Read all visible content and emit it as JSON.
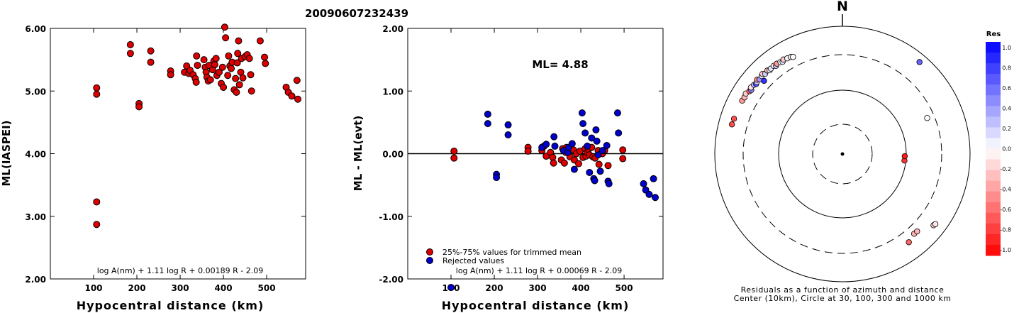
{
  "figure_title": "20090607232439",
  "chart_data": [
    {
      "type": "scatter",
      "ylabel": "ML(IASPEI)",
      "xlabel": "Hypocentral distance (km)",
      "xlim": [
        0,
        590
      ],
      "ylim": [
        2.0,
        6.0
      ],
      "x_ticks": [
        "100",
        "200",
        "300",
        "400",
        "500"
      ],
      "y_ticks": [
        "2.00",
        "3.00",
        "4.00",
        "5.00",
        "6.00"
      ],
      "formula": "log A(nm) + 1.11 log R + 0.00189 R - 2.09",
      "marker_color": "#dd0000",
      "points": [
        [
          107,
          5.05
        ],
        [
          107,
          4.95
        ],
        [
          107,
          3.23
        ],
        [
          107,
          2.87
        ],
        [
          185,
          5.74
        ],
        [
          185,
          5.6
        ],
        [
          205,
          4.8
        ],
        [
          205,
          4.75
        ],
        [
          232,
          5.64
        ],
        [
          232,
          5.46
        ],
        [
          278,
          5.32
        ],
        [
          278,
          5.26
        ],
        [
          310,
          5.3
        ],
        [
          315,
          5.4
        ],
        [
          320,
          5.28
        ],
        [
          323,
          5.33
        ],
        [
          330,
          5.26
        ],
        [
          335,
          5.2
        ],
        [
          337,
          5.14
        ],
        [
          338,
          5.56
        ],
        [
          340,
          5.41
        ],
        [
          355,
          5.5
        ],
        [
          358,
          5.38
        ],
        [
          360,
          5.3
        ],
        [
          362,
          5.22
        ],
        [
          365,
          5.16
        ],
        [
          367,
          5.41
        ],
        [
          370,
          5.18
        ],
        [
          375,
          5.34
        ],
        [
          378,
          5.48
        ],
        [
          380,
          5.42
        ],
        [
          383,
          5.52
        ],
        [
          385,
          5.25
        ],
        [
          390,
          5.3
        ],
        [
          395,
          5.12
        ],
        [
          398,
          5.38
        ],
        [
          400,
          5.06
        ],
        [
          403,
          6.02
        ],
        [
          405,
          5.85
        ],
        [
          410,
          5.25
        ],
        [
          412,
          5.56
        ],
        [
          415,
          5.4
        ],
        [
          418,
          5.36
        ],
        [
          420,
          5.46
        ],
        [
          425,
          5.02
        ],
        [
          428,
          5.2
        ],
        [
          430,
          4.98
        ],
        [
          432,
          5.45
        ],
        [
          433,
          5.6
        ],
        [
          435,
          5.8
        ],
        [
          437,
          5.1
        ],
        [
          440,
          5.3
        ],
        [
          442,
          5.52
        ],
        [
          445,
          5.21
        ],
        [
          450,
          5.55
        ],
        [
          455,
          5.58
        ],
        [
          460,
          5.52
        ],
        [
          463,
          5.26
        ],
        [
          465,
          5.0
        ],
        [
          485,
          5.8
        ],
        [
          495,
          5.54
        ],
        [
          497,
          5.44
        ],
        [
          545,
          5.06
        ],
        [
          550,
          4.98
        ],
        [
          558,
          4.92
        ],
        [
          570,
          5.17
        ],
        [
          572,
          4.87
        ]
      ]
    },
    {
      "type": "scatter",
      "ylabel": "ML - ML(evt)",
      "xlabel": "Hypocentral distance (km)",
      "xlim": [
        0,
        590
      ],
      "ylim": [
        -2.0,
        2.0
      ],
      "x_ticks": [
        "100",
        "200",
        "300",
        "400",
        "500"
      ],
      "y_ticks": [
        "-2.00",
        "-1.00",
        "0.00",
        "1.00",
        "2.00"
      ],
      "annotation": "ML= 4.88",
      "formula": "log A(nm) + 1.11 log R + 0.00069 R - 2.09",
      "reference_line": 0.0,
      "series": [
        {
          "name": "25%-75% values for trimmed mean",
          "color": "#dd0000",
          "points": [
            [
              107,
              0.04
            ],
            [
              107,
              -0.07
            ],
            [
              278,
              0.1
            ],
            [
              278,
              0.04
            ],
            [
              310,
              0.05
            ],
            [
              315,
              0.12
            ],
            [
              320,
              -0.04
            ],
            [
              330,
              0.02
            ],
            [
              335,
              -0.06
            ],
            [
              337,
              -0.15
            ],
            [
              355,
              -0.1
            ],
            [
              358,
              0.08
            ],
            [
              362,
              -0.15
            ],
            [
              365,
              0.02
            ],
            [
              367,
              0.1
            ],
            [
              375,
              -0.05
            ],
            [
              378,
              0.08
            ],
            [
              383,
              0.06
            ],
            [
              385,
              -0.1
            ],
            [
              390,
              0.0
            ],
            [
              395,
              -0.16
            ],
            [
              398,
              0.04
            ],
            [
              405,
              -0.06
            ],
            [
              410,
              0.08
            ],
            [
              412,
              -0.04
            ],
            [
              415,
              0.02
            ],
            [
              418,
              0.07
            ],
            [
              420,
              -0.02
            ],
            [
              425,
              0.1
            ],
            [
              428,
              -0.05
            ],
            [
              433,
              -0.07
            ],
            [
              440,
              0.05
            ],
            [
              442,
              -0.17
            ],
            [
              450,
              0.0
            ],
            [
              455,
              0.05
            ],
            [
              463,
              -0.19
            ],
            [
              497,
              -0.08
            ],
            [
              497,
              0.06
            ]
          ]
        },
        {
          "name": "Rejected values",
          "color": "#0000cc",
          "points": [
            [
              100,
              -2.2
            ],
            [
              185,
              0.63
            ],
            [
              185,
              0.48
            ],
            [
              205,
              -0.33
            ],
            [
              205,
              -0.38
            ],
            [
              232,
              0.46
            ],
            [
              232,
              0.3
            ],
            [
              310,
              0.1
            ],
            [
              320,
              0.15
            ],
            [
              338,
              0.27
            ],
            [
              340,
              0.12
            ],
            [
              360,
              0.05
            ],
            [
              370,
              0.02
            ],
            [
              372,
              0.1
            ],
            [
              380,
              0.16
            ],
            [
              385,
              -0.25
            ],
            [
              403,
              0.65
            ],
            [
              405,
              0.48
            ],
            [
              410,
              0.33
            ],
            [
              415,
              0.12
            ],
            [
              420,
              -0.3
            ],
            [
              425,
              0.25
            ],
            [
              430,
              -0.4
            ],
            [
              432,
              -0.43
            ],
            [
              435,
              0.38
            ],
            [
              437,
              0.2
            ],
            [
              440,
              -0.02
            ],
            [
              445,
              -0.28
            ],
            [
              450,
              0.05
            ],
            [
              460,
              0.13
            ],
            [
              463,
              -0.44
            ],
            [
              465,
              -0.48
            ],
            [
              485,
              0.65
            ],
            [
              487,
              0.33
            ],
            [
              545,
              -0.48
            ],
            [
              550,
              -0.58
            ],
            [
              558,
              -0.65
            ],
            [
              568,
              -0.4
            ],
            [
              572,
              -0.7
            ]
          ]
        }
      ]
    },
    {
      "type": "polar_scatter",
      "north_label": "N",
      "caption_line1": "Residuals as a function of azimuth and distance",
      "caption_line2": "Center (10km), Circle at 30, 100, 300 and 1000 km",
      "rings_km": [
        30,
        100,
        300,
        1000
      ],
      "center_km": 10,
      "colorbar": {
        "title": "Res",
        "range": [
          -1.0,
          1.0
        ],
        "tick_labels": [
          "1.0",
          "0.8",
          "0.6",
          "0.4",
          "0.2",
          "0.0",
          "-0.2",
          "-0.4",
          "-0.6",
          "-0.8",
          "-1.0"
        ],
        "positive_color": "#0000ff",
        "negative_color": "#ff0000"
      },
      "stations": [
        {
          "az": 298,
          "dist_km": 550,
          "res": -0.4
        },
        {
          "az": 300,
          "dist_km": 540,
          "res": -0.3
        },
        {
          "az": 302,
          "dist_km": 560,
          "res": -0.2
        },
        {
          "az": 304,
          "dist_km": 520,
          "res": -0.6
        },
        {
          "az": 305,
          "dist_km": 500,
          "res": 0.5
        },
        {
          "az": 306,
          "dist_km": 540,
          "res": -0.1
        },
        {
          "az": 308,
          "dist_km": 520,
          "res": 0.3
        },
        {
          "az": 309,
          "dist_km": 495,
          "res": 0.7
        },
        {
          "az": 310,
          "dist_km": 510,
          "res": 0.2
        },
        {
          "az": 311,
          "dist_km": 540,
          "res": -0.5
        },
        {
          "az": 312,
          "dist_km": 500,
          "res": 0.4
        },
        {
          "az": 314,
          "dist_km": 520,
          "res": 0.1
        },
        {
          "az": 315,
          "dist_km": 540,
          "res": -0.2
        },
        {
          "az": 316,
          "dist_km": 500,
          "res": 0.2
        },
        {
          "az": 318,
          "dist_km": 520,
          "res": -0.3
        },
        {
          "az": 319,
          "dist_km": 490,
          "res": 0.0
        },
        {
          "az": 320,
          "dist_km": 500,
          "res": 0.1
        },
        {
          "az": 322,
          "dist_km": 510,
          "res": -0.1
        },
        {
          "az": 323,
          "dist_km": 480,
          "res": 0.2
        },
        {
          "az": 324,
          "dist_km": 505,
          "res": -0.4
        },
        {
          "az": 326,
          "dist_km": 490,
          "res": 0.0
        },
        {
          "az": 327,
          "dist_km": 470,
          "res": 0.1
        },
        {
          "az": 328,
          "dist_km": 500,
          "res": -0.2
        },
        {
          "az": 330,
          "dist_km": 480,
          "res": 0.05
        },
        {
          "az": 332,
          "dist_km": 470,
          "res": -0.1
        },
        {
          "az": 333,
          "dist_km": 450,
          "res": 0.0
        },
        {
          "az": 313,
          "dist_km": 420,
          "res": 0.8
        },
        {
          "az": 288,
          "dist_km": 560,
          "res": -0.7
        },
        {
          "az": 285,
          "dist_km": 570,
          "res": -0.7
        },
        {
          "az": 40,
          "dist_km": 720,
          "res": 0.6
        },
        {
          "az": 67,
          "dist_km": 240,
          "res": 0.0
        },
        {
          "az": 96,
          "dist_km": 95,
          "res": -0.8
        },
        {
          "az": 92,
          "dist_km": 95,
          "res": -0.9
        },
        {
          "az": 138,
          "dist_km": 420,
          "res": -0.3
        },
        {
          "az": 136,
          "dist_km": 425,
          "res": -0.3
        },
        {
          "az": 143,
          "dist_km": 480,
          "res": -0.6
        },
        {
          "az": 128,
          "dist_km": 600,
          "res": -0.2
        },
        {
          "az": 127,
          "dist_km": 620,
          "res": -0.1
        }
      ]
    }
  ]
}
